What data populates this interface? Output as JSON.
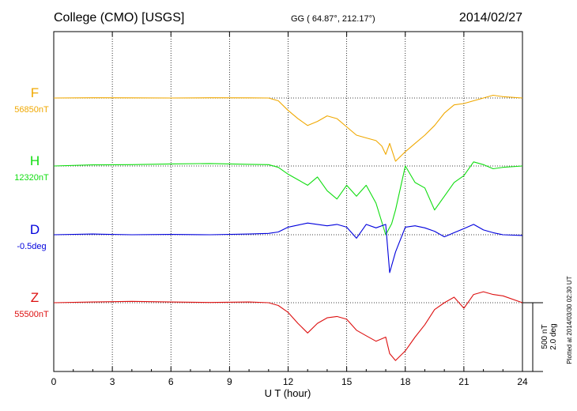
{
  "header": {
    "station": "College (CMO)  [USGS]",
    "coords": "GG ( 64.87°, 212.17°)",
    "date": "2014/02/27"
  },
  "side_note": "Plotted at 2014/03/30 02:30 UT",
  "scale_bar": {
    "line1": "500 nT",
    "line2": "2.0 deg"
  },
  "chart_data": {
    "type": "line",
    "title": "College (CMO)  [USGS]",
    "xlabel": "U T (hour)",
    "xlim": [
      0,
      24
    ],
    "xticks": [
      0,
      3,
      6,
      9,
      12,
      15,
      18,
      21,
      24
    ],
    "grid": true,
    "scale": {
      "nT": 500,
      "deg": 2.0
    },
    "series": [
      {
        "name": "F",
        "baseline_label": "56850nT",
        "unit": "nT",
        "baseline": 56850,
        "color": "#f0a800",
        "points": [
          [
            0,
            56850
          ],
          [
            2,
            56852
          ],
          [
            4,
            56851
          ],
          [
            6,
            56850
          ],
          [
            8,
            56852
          ],
          [
            10,
            56851
          ],
          [
            11,
            56850
          ],
          [
            11.5,
            56830
          ],
          [
            12,
            56760
          ],
          [
            12.5,
            56700
          ],
          [
            13,
            56650
          ],
          [
            13.5,
            56680
          ],
          [
            14,
            56720
          ],
          [
            14.5,
            56700
          ],
          [
            15,
            56640
          ],
          [
            15.5,
            56580
          ],
          [
            16,
            56560
          ],
          [
            16.5,
            56540
          ],
          [
            16.8,
            56500
          ],
          [
            17,
            56440
          ],
          [
            17.2,
            56520
          ],
          [
            17.5,
            56390
          ],
          [
            18,
            56460
          ],
          [
            18.5,
            56520
          ],
          [
            19,
            56580
          ],
          [
            19.5,
            56650
          ],
          [
            20,
            56740
          ],
          [
            20.5,
            56800
          ],
          [
            21,
            56810
          ],
          [
            21.5,
            56830
          ],
          [
            22,
            56850
          ],
          [
            22.5,
            56870
          ],
          [
            23,
            56860
          ],
          [
            24,
            56850
          ]
        ]
      },
      {
        "name": "H",
        "baseline_label": "12320nT",
        "unit": "nT",
        "baseline": 12320,
        "color": "#10dd10",
        "points": [
          [
            0,
            12320
          ],
          [
            2,
            12328
          ],
          [
            4,
            12330
          ],
          [
            6,
            12335
          ],
          [
            8,
            12338
          ],
          [
            10,
            12332
          ],
          [
            11,
            12330
          ],
          [
            11.5,
            12310
          ],
          [
            12,
            12260
          ],
          [
            12.5,
            12220
          ],
          [
            13,
            12180
          ],
          [
            13.5,
            12240
          ],
          [
            14,
            12140
          ],
          [
            14.5,
            12080
          ],
          [
            15,
            12180
          ],
          [
            15.5,
            12100
          ],
          [
            16,
            12180
          ],
          [
            16.5,
            12050
          ],
          [
            17,
            11820
          ],
          [
            17.3,
            11900
          ],
          [
            17.5,
            12000
          ],
          [
            18,
            12320
          ],
          [
            18.5,
            12200
          ],
          [
            19,
            12160
          ],
          [
            19.5,
            12000
          ],
          [
            20,
            12100
          ],
          [
            20.5,
            12200
          ],
          [
            21,
            12250
          ],
          [
            21.5,
            12350
          ],
          [
            22,
            12330
          ],
          [
            22.5,
            12300
          ],
          [
            23,
            12310
          ],
          [
            24,
            12320
          ]
        ]
      },
      {
        "name": "D",
        "baseline_label": "-0.5deg",
        "unit": "deg",
        "baseline": -0.5,
        "color": "#0000dd",
        "points": [
          [
            0,
            -0.5
          ],
          [
            2,
            -0.48
          ],
          [
            4,
            -0.5
          ],
          [
            6,
            -0.49
          ],
          [
            8,
            -0.5
          ],
          [
            10,
            -0.48
          ],
          [
            11,
            -0.46
          ],
          [
            11.5,
            -0.42
          ],
          [
            12,
            -0.28
          ],
          [
            12.5,
            -0.22
          ],
          [
            13,
            -0.16
          ],
          [
            13.5,
            -0.2
          ],
          [
            14,
            -0.24
          ],
          [
            14.5,
            -0.2
          ],
          [
            15,
            -0.28
          ],
          [
            15.5,
            -0.6
          ],
          [
            16,
            -0.2
          ],
          [
            16.5,
            -0.3
          ],
          [
            17,
            -0.2
          ],
          [
            17.2,
            -1.6
          ],
          [
            17.5,
            -1.0
          ],
          [
            18,
            -0.28
          ],
          [
            18.5,
            -0.24
          ],
          [
            19,
            -0.3
          ],
          [
            19.5,
            -0.4
          ],
          [
            20,
            -0.56
          ],
          [
            20.5,
            -0.44
          ],
          [
            21,
            -0.32
          ],
          [
            21.5,
            -0.2
          ],
          [
            22,
            -0.36
          ],
          [
            22.5,
            -0.44
          ],
          [
            23,
            -0.5
          ],
          [
            24,
            -0.52
          ]
        ]
      },
      {
        "name": "Z",
        "baseline_label": "55500nT",
        "unit": "nT",
        "baseline": 55500,
        "color": "#dd1010",
        "points": [
          [
            0,
            55500
          ],
          [
            2,
            55505
          ],
          [
            4,
            55510
          ],
          [
            6,
            55505
          ],
          [
            8,
            55502
          ],
          [
            10,
            55505
          ],
          [
            11,
            55500
          ],
          [
            11.5,
            55480
          ],
          [
            12,
            55430
          ],
          [
            12.5,
            55350
          ],
          [
            13,
            55280
          ],
          [
            13.5,
            55350
          ],
          [
            14,
            55390
          ],
          [
            14.5,
            55400
          ],
          [
            15,
            55380
          ],
          [
            15.5,
            55300
          ],
          [
            16,
            55260
          ],
          [
            16.5,
            55220
          ],
          [
            17,
            55250
          ],
          [
            17.2,
            55130
          ],
          [
            17.5,
            55080
          ],
          [
            18,
            55150
          ],
          [
            18.5,
            55250
          ],
          [
            19,
            55340
          ],
          [
            19.5,
            55450
          ],
          [
            20,
            55500
          ],
          [
            20.5,
            55540
          ],
          [
            21,
            55460
          ],
          [
            21.5,
            55560
          ],
          [
            22,
            55580
          ],
          [
            22.5,
            55560
          ],
          [
            23,
            55550
          ],
          [
            24,
            55500
          ]
        ]
      }
    ]
  }
}
